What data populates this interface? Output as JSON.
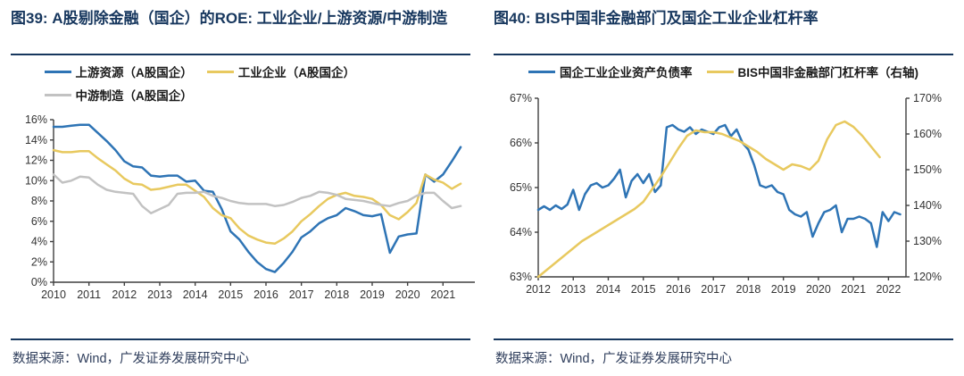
{
  "theme": {
    "title_color": "#17375e",
    "divider_color": "#17375e",
    "axis_color": "#3f3f3f",
    "tick_text_color": "#333333",
    "blue": "#2e74b5",
    "gold": "#e8c95f",
    "gray": "#c2c2c2"
  },
  "figures": [
    {
      "title": "图39: A股剔除金融（国企）的ROE: 工业企业/上游资源/中游制造",
      "source": "数据来源：Wind，广发证券发展研究中心",
      "chart_data": {
        "type": "line",
        "grid": false,
        "legend_position": "top",
        "x_axis": {
          "min": 2010,
          "max": 2021.9,
          "ticks": [
            2010,
            2011,
            2012,
            2013,
            2014,
            2015,
            2016,
            2017,
            2018,
            2019,
            2020,
            2021
          ]
        },
        "y_axis": {
          "min": 0,
          "max": 16,
          "ticks": [
            0,
            2,
            4,
            6,
            8,
            10,
            12,
            14,
            16
          ],
          "suffix": "%"
        },
        "series": [
          {
            "name": "上游资源（A股国企）",
            "color": "#2e74b5",
            "axis": "y",
            "x_start": 2010,
            "x_step": 0.25,
            "values": [
              15.3,
              15.3,
              15.4,
              15.5,
              15.5,
              14.7,
              13.9,
              13.0,
              11.9,
              11.4,
              11.3,
              10.5,
              10.4,
              10.5,
              10.5,
              9.9,
              10.0,
              9.0,
              8.9,
              7.2,
              5.0,
              4.2,
              3.0,
              2.0,
              1.3,
              1.0,
              1.9,
              3.0,
              4.4,
              5.0,
              5.8,
              6.3,
              6.6,
              7.3,
              7.0,
              6.6,
              6.5,
              6.7,
              2.9,
              4.5,
              4.7,
              4.8,
              10.6,
              9.9,
              10.6,
              11.9,
              13.3
            ]
          },
          {
            "name": "工业企业（A股国企）",
            "color": "#e8c95f",
            "axis": "y",
            "x_start": 2010,
            "x_step": 0.25,
            "values": [
              13.0,
              12.8,
              12.8,
              12.9,
              12.9,
              12.2,
              11.6,
              11.0,
              10.2,
              9.7,
              9.6,
              9.1,
              9.2,
              9.4,
              9.6,
              9.6,
              9.0,
              8.4,
              7.3,
              6.6,
              6.3,
              5.3,
              4.6,
              4.2,
              3.9,
              3.8,
              4.3,
              5.0,
              6.0,
              6.7,
              7.5,
              8.2,
              8.6,
              8.8,
              8.5,
              8.4,
              8.2,
              7.6,
              6.6,
              6.2,
              6.9,
              7.8,
              10.6,
              10.1,
              9.8,
              9.2,
              9.7
            ]
          },
          {
            "name": "中游制造（A股国企）",
            "color": "#c2c2c2",
            "axis": "y",
            "x_start": 2010,
            "x_step": 0.25,
            "values": [
              10.6,
              9.8,
              10.0,
              10.4,
              10.3,
              9.6,
              9.1,
              8.9,
              8.8,
              8.7,
              7.5,
              6.8,
              7.2,
              7.6,
              8.7,
              8.8,
              8.8,
              8.9,
              8.5,
              8.3,
              8.0,
              7.8,
              7.7,
              7.7,
              7.7,
              7.5,
              7.6,
              7.9,
              8.3,
              8.5,
              8.9,
              8.8,
              8.6,
              8.2,
              8.1,
              8.0,
              7.8,
              7.6,
              7.5,
              7.8,
              8.0,
              8.5,
              8.8,
              8.8,
              8.0,
              7.3,
              7.5
            ]
          }
        ]
      }
    },
    {
      "title": "图40: BIS中国非金融部门及国企工业企业杠杆率",
      "source": "数据来源：Wind，广发证券发展研究中心",
      "chart_data": {
        "type": "line",
        "grid": false,
        "legend_position": "top",
        "x_axis": {
          "min": 2012,
          "max": 2022.5,
          "ticks": [
            2012,
            2013,
            2014,
            2015,
            2016,
            2017,
            2018,
            2019,
            2020,
            2021,
            2022
          ]
        },
        "y_axis": {
          "min": 63,
          "max": 67,
          "ticks": [
            63,
            64,
            65,
            66,
            67
          ],
          "suffix": "%"
        },
        "y2_axis": {
          "min": 120,
          "max": 170,
          "ticks": [
            120,
            130,
            140,
            150,
            160,
            170
          ],
          "suffix": "%"
        },
        "series": [
          {
            "name": "国企工业企业资产负债率",
            "color": "#2e74b5",
            "axis": "y",
            "x_start": 2012,
            "x_step": 0.166667,
            "values": [
              64.5,
              64.58,
              64.5,
              64.6,
              64.52,
              64.62,
              64.95,
              64.5,
              64.85,
              65.05,
              65.1,
              65.0,
              65.05,
              65.2,
              65.4,
              64.78,
              65.15,
              65.3,
              65.1,
              65.3,
              64.9,
              65.05,
              66.35,
              66.4,
              66.3,
              66.25,
              66.35,
              66.2,
              66.3,
              66.25,
              66.2,
              66.35,
              66.4,
              66.15,
              66.3,
              66.0,
              65.85,
              65.5,
              65.05,
              65.0,
              65.05,
              64.9,
              64.85,
              64.5,
              64.4,
              64.35,
              64.45,
              63.9,
              64.2,
              64.45,
              64.5,
              64.6,
              64.0,
              64.3,
              64.3,
              64.35,
              64.3,
              64.2,
              63.67,
              64.45,
              64.25,
              64.45,
              64.4
            ]
          },
          {
            "name": "BIS中国非金融部门杠杆率（右轴)",
            "color": "#e8c95f",
            "axis": "y2",
            "x_start": 2012,
            "x_step": 0.25,
            "values": [
              120,
              122,
              124,
              126,
              128,
              130,
              131.5,
              133,
              134.5,
              136,
              137.5,
              139,
              141,
              144.5,
              148,
              152,
              156,
              159.5,
              161,
              160.5,
              160.5,
              160,
              159,
              158,
              156.5,
              155,
              153,
              151.5,
              150,
              151.5,
              151,
              150,
              152.5,
              158.5,
              162.5,
              163.5,
              162,
              159.5,
              156.5,
              153.5
            ]
          }
        ]
      }
    }
  ]
}
